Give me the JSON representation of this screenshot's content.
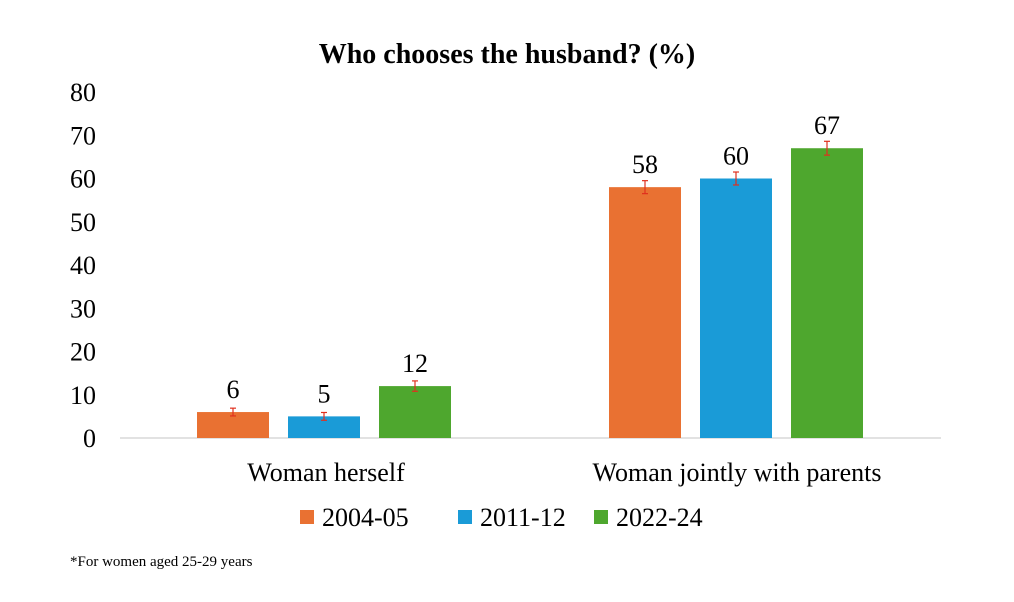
{
  "chart_data": {
    "type": "bar",
    "title": "Who chooses the husband? (%)",
    "xlabel": "",
    "ylabel": "",
    "categories": [
      "Woman herself",
      "Woman jointly with parents"
    ],
    "series": [
      {
        "name": "2004-05",
        "color": "#E97132",
        "values": [
          6,
          58
        ],
        "labels": [
          "6",
          "58"
        ],
        "error": [
          0.9,
          1.5
        ]
      },
      {
        "name": "2011-12",
        "color": "#1A9BD7",
        "values": [
          5,
          60
        ],
        "labels": [
          "5",
          "60"
        ],
        "error": [
          0.9,
          1.5
        ]
      },
      {
        "name": "2022-24",
        "color": "#4EA72E",
        "values": [
          12,
          67
        ],
        "labels": [
          "12",
          "67"
        ],
        "error": [
          1.2,
          1.6
        ]
      }
    ],
    "ylim": [
      0,
      80
    ],
    "yticks": [
      0,
      10,
      20,
      30,
      40,
      50,
      60,
      70,
      80
    ],
    "grid": false,
    "legend": "bottom",
    "error_bar_color": "#E0301E",
    "note": "*For women aged 25-29 years"
  }
}
